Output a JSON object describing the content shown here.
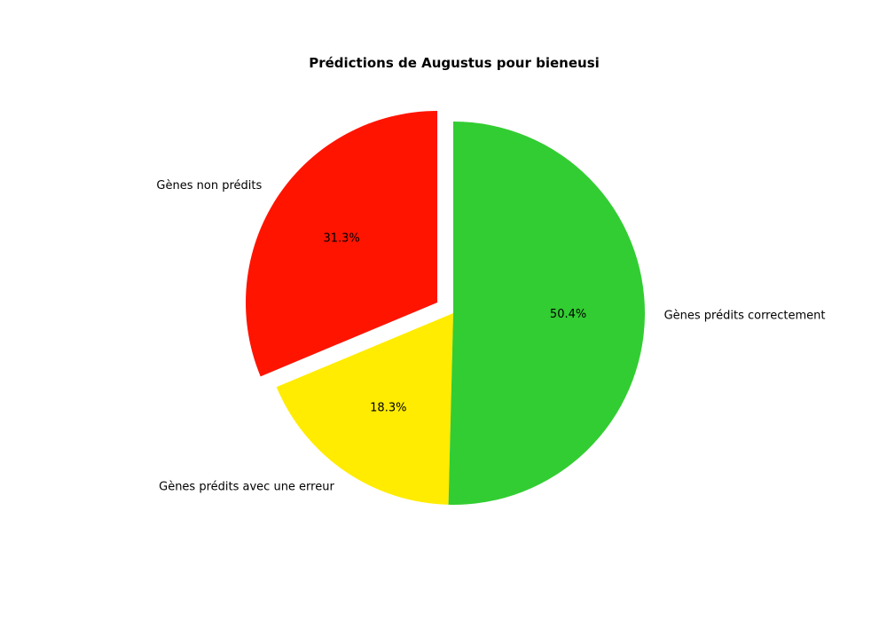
{
  "chart_data": {
    "type": "pie",
    "title": "Prédictions de Augustus pour bieneusi",
    "start_angle_deg": 90,
    "direction": "counterclockwise",
    "slices": [
      {
        "label": "Gènes non prédits",
        "value": 31.3,
        "pct_label": "31.3%",
        "color": "#ff1400",
        "exploded": true
      },
      {
        "label": "Gènes prédits avec une erreur",
        "value": 18.3,
        "pct_label": "18.3%",
        "color": "#ffec00",
        "exploded": false
      },
      {
        "label": "Gènes prédits correctement",
        "value": 50.4,
        "pct_label": "50.4%",
        "color": "#32cd32",
        "exploded": false
      }
    ],
    "legend": "none"
  }
}
